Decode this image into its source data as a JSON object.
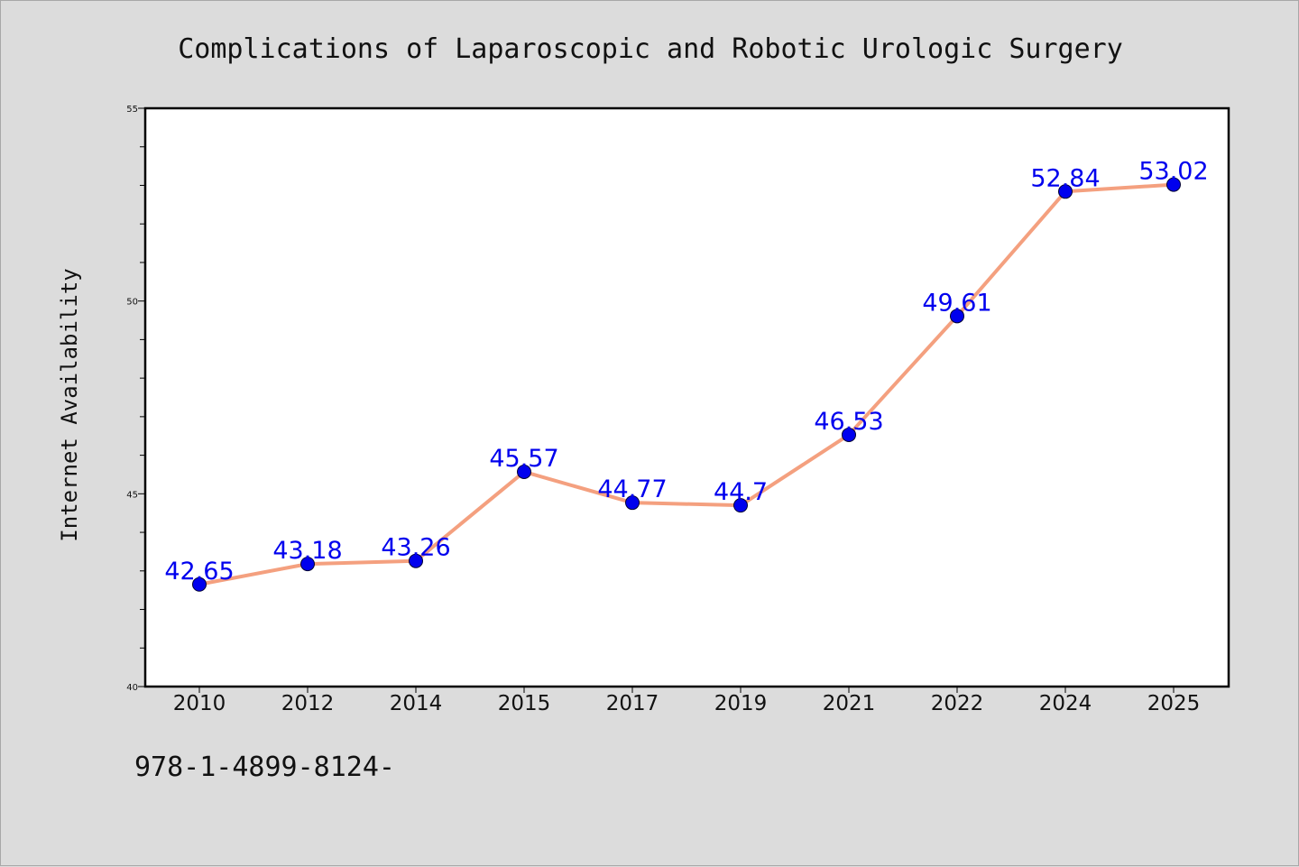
{
  "chart_data": {
    "type": "line",
    "title": "Complications of Laparoscopic and Robotic Urologic Surgery",
    "xlabel": "",
    "ylabel": "Internet Availability",
    "ylim": [
      40,
      55
    ],
    "y_ticks": [
      40,
      45,
      50,
      55
    ],
    "grid": false,
    "categories": [
      "2010",
      "2012",
      "2014",
      "2015",
      "2017",
      "2019",
      "2021",
      "2022",
      "2024",
      "2025"
    ],
    "values": [
      42.65,
      43.18,
      43.26,
      45.57,
      44.77,
      44.7,
      46.53,
      49.61,
      52.84,
      53.02
    ],
    "data_labels": [
      "42.65",
      "43.18",
      "43.26",
      "45.57",
      "44.77",
      "44.7",
      "46.53",
      "49.61",
      "52.84",
      "53.02"
    ],
    "line_color": "#f4a07f",
    "marker_color": "#0000ee",
    "label_color": "#0000ee"
  },
  "footer": {
    "text": "978-1-4899-8124-"
  }
}
